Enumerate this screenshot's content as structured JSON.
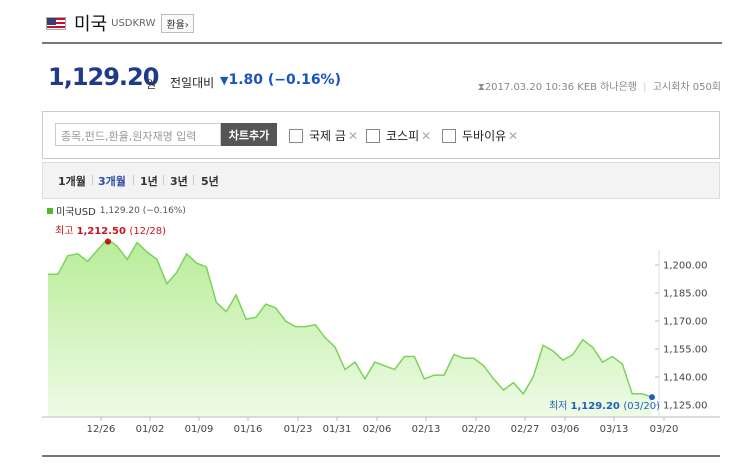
{
  "header": {
    "name": "미국",
    "code": "USDKRW",
    "fx_button": "환율›"
  },
  "quote": {
    "price": "1,129.20",
    "unit": "원",
    "compare_label": "전일대비",
    "change_arrow": "▼",
    "change": "1.80",
    "change_pct": "(−0.16%)",
    "datetime": "2017.03.20 10:36",
    "source": "KEB 하나은행",
    "notice": "고시회차 050회"
  },
  "search": {
    "placeholder": "종목,펀드,환율,원자재명 입력",
    "add_button": "차트추가",
    "options": [
      {
        "label": "국제 금"
      },
      {
        "label": "코스피"
      },
      {
        "label": "두바이유"
      }
    ]
  },
  "periods": [
    "1개월",
    "3개월",
    "1년",
    "3년",
    "5년"
  ],
  "active_period": "3개월",
  "legend": {
    "label": "미국USD",
    "value": "1,129.20 (−0.16%)"
  },
  "colors": {
    "line": "#7cd35a",
    "fill_top": "#b8ec98",
    "fill_bottom": "#eefbe6",
    "accent_blue": "#1a53c6",
    "high_red": "#c4161c"
  },
  "chart_data": {
    "type": "area",
    "series": [
      {
        "name": "미국USD",
        "values": [
          1195,
          1195,
          1205,
          1206,
          1202,
          1208,
          1214,
          1210,
          1203,
          1212,
          1207,
          1203,
          1190,
          1196,
          1206,
          1201,
          1199,
          1180,
          1175,
          1184,
          1171,
          1172,
          1179,
          1177,
          1170,
          1167,
          1167,
          1168,
          1161,
          1156,
          1144,
          1148,
          1139,
          1148,
          1146,
          1144,
          1151,
          1151,
          1139,
          1141,
          1141,
          1152,
          1150,
          1150,
          1146,
          1139,
          1133,
          1137,
          1131,
          1140,
          1157,
          1154,
          1149,
          1152,
          1160,
          1156,
          1148,
          1151,
          1147,
          1131,
          1131,
          1129.2
        ]
      }
    ],
    "x_ticks": [
      "12/26",
      "01/02",
      "01/09",
      "01/16",
      "01/23",
      "01/31",
      "02/06",
      "02/13",
      "02/20",
      "02/27",
      "03/06",
      "03/13",
      "03/20"
    ],
    "y_ticks": [
      "1,200.00",
      "1,185.00",
      "1,170.00",
      "1,155.00",
      "1,140.00",
      "1,125.00"
    ],
    "ylim": [
      1120,
      1226
    ],
    "high": {
      "label": "최고",
      "value": "1,212.50",
      "date": "(12/28)"
    },
    "low": {
      "label": "최저",
      "value": "1,129.20",
      "date": "(03/20)"
    },
    "grid": false,
    "legend_position": "top-left"
  }
}
